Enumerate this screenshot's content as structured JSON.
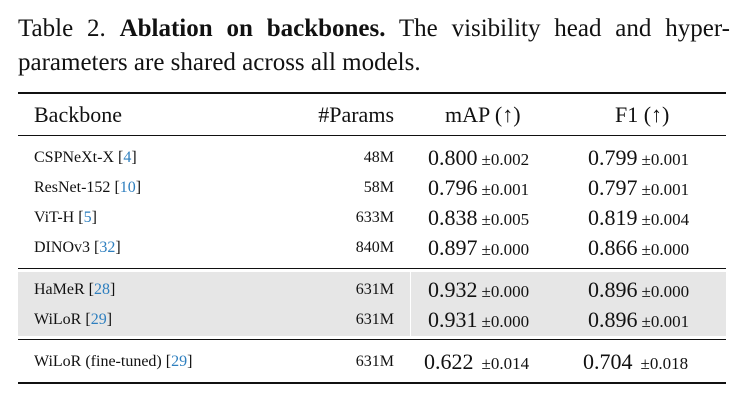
{
  "caption": {
    "label": "Table 2.",
    "title": "Ablation on backbones.",
    "text": "The visibility head and hyper-parameters are shared across all models."
  },
  "table": {
    "headers": [
      "Backbone",
      "#Params",
      "mAP (↑)",
      "F1 (↑)"
    ],
    "groups": [
      {
        "shaded": false,
        "rows": [
          {
            "name": "CSPNeXt-X",
            "ref": "4",
            "params": "48M",
            "map": "0.800",
            "map_pm": "±0.002",
            "f1": "0.799",
            "f1_pm": "±0.001"
          },
          {
            "name": "ResNet-152",
            "ref": "10",
            "params": "58M",
            "map": "0.796",
            "map_pm": "±0.001",
            "f1": "0.797",
            "f1_pm": "±0.001"
          },
          {
            "name": "ViT-H",
            "ref": "5",
            "params": "633M",
            "map": "0.838",
            "map_pm": "±0.005",
            "f1": "0.819",
            "f1_pm": "±0.004"
          },
          {
            "name": "DINOv3",
            "ref": "32",
            "params": "840M",
            "map": "0.897",
            "map_pm": "±0.000",
            "f1": "0.866",
            "f1_pm": "±0.000"
          }
        ]
      },
      {
        "shaded": true,
        "rows": [
          {
            "name": "HaMeR",
            "ref": "28",
            "params": "631M",
            "map": "0.932",
            "map_pm": "±0.000",
            "f1": "0.896",
            "f1_pm": "±0.000"
          },
          {
            "name": "WiLoR",
            "ref": "29",
            "params": "631M",
            "map": "0.931",
            "map_pm": "±0.000",
            "f1": "0.896",
            "f1_pm": "±0.001"
          }
        ]
      },
      {
        "shaded": false,
        "rows": [
          {
            "name": "WiLoR (fine-tuned)",
            "ref": "29",
            "params": "631M",
            "map": "0.622",
            "map_pm": "±0.014",
            "f1": "0.704",
            "f1_pm": "±0.018"
          }
        ]
      }
    ]
  }
}
